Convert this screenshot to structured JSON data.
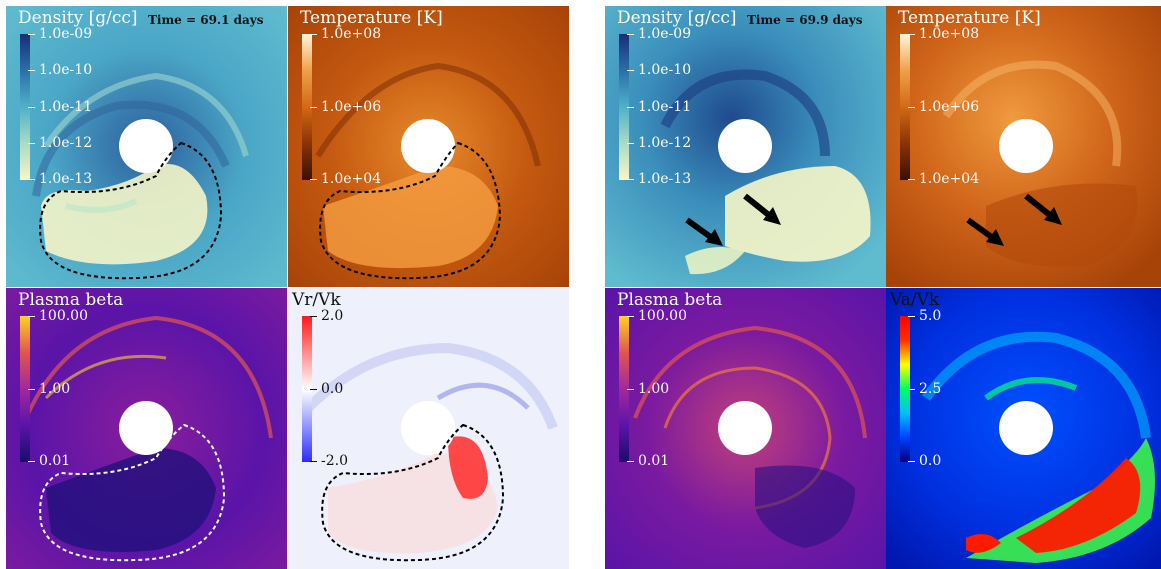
{
  "left_snapshot": {
    "time": "Time = 69.1 days",
    "density": {
      "title": "Density [g/cc]",
      "ticks": [
        "1.0e-09",
        "1.0e-10",
        "1.0e-11",
        "1.0e-12",
        "1.0e-13"
      ]
    },
    "temperature": {
      "title": "Temperature [K]",
      "ticks": [
        "1.0e+08",
        "1.0e+06",
        "1.0e+04"
      ]
    },
    "plasma_beta": {
      "title": "Plasma beta",
      "ticks": [
        "100.00",
        "1.00",
        "0.01"
      ]
    },
    "vr_vk": {
      "title": "Vr/Vk",
      "ticks": [
        "2.0",
        "0.0",
        "-2.0"
      ]
    }
  },
  "right_snapshot": {
    "time": "Time = 69.9 days",
    "density": {
      "title": "Density [g/cc]",
      "ticks": [
        "1.0e-09",
        "1.0e-10",
        "1.0e-11",
        "1.0e-12",
        "1.0e-13"
      ]
    },
    "temperature": {
      "title": "Temperature [K]",
      "ticks": [
        "1.0e+08",
        "1.0e+06",
        "1.0e+04"
      ]
    },
    "plasma_beta": {
      "title": "Plasma beta",
      "ticks": [
        "100.00",
        "1.00",
        "0.01"
      ]
    },
    "va_vk": {
      "title": "Va/Vk",
      "ticks": [
        "5.0",
        "2.5",
        "0.0"
      ]
    }
  },
  "colors": {
    "density": [
      "#162f78",
      "#2b6fa8",
      "#4fb1c9",
      "#a8dcc4",
      "#f8f6c6"
    ],
    "temperature": [
      "#3a1004",
      "#8a3306",
      "#d26a14",
      "#f0a04a",
      "#fff6d8"
    ],
    "plasma_beta": [
      "#1a0c6a",
      "#5a14a8",
      "#a2289e",
      "#e0564e",
      "#fcd226"
    ],
    "vr": [
      "#2b2bff",
      "#ffffff",
      "#ff1a1a"
    ],
    "va": [
      "#00007e",
      "#0040ff",
      "#00c0ff",
      "#00ff60",
      "#ffff00",
      "#ff3000",
      "#ff0000"
    ]
  }
}
